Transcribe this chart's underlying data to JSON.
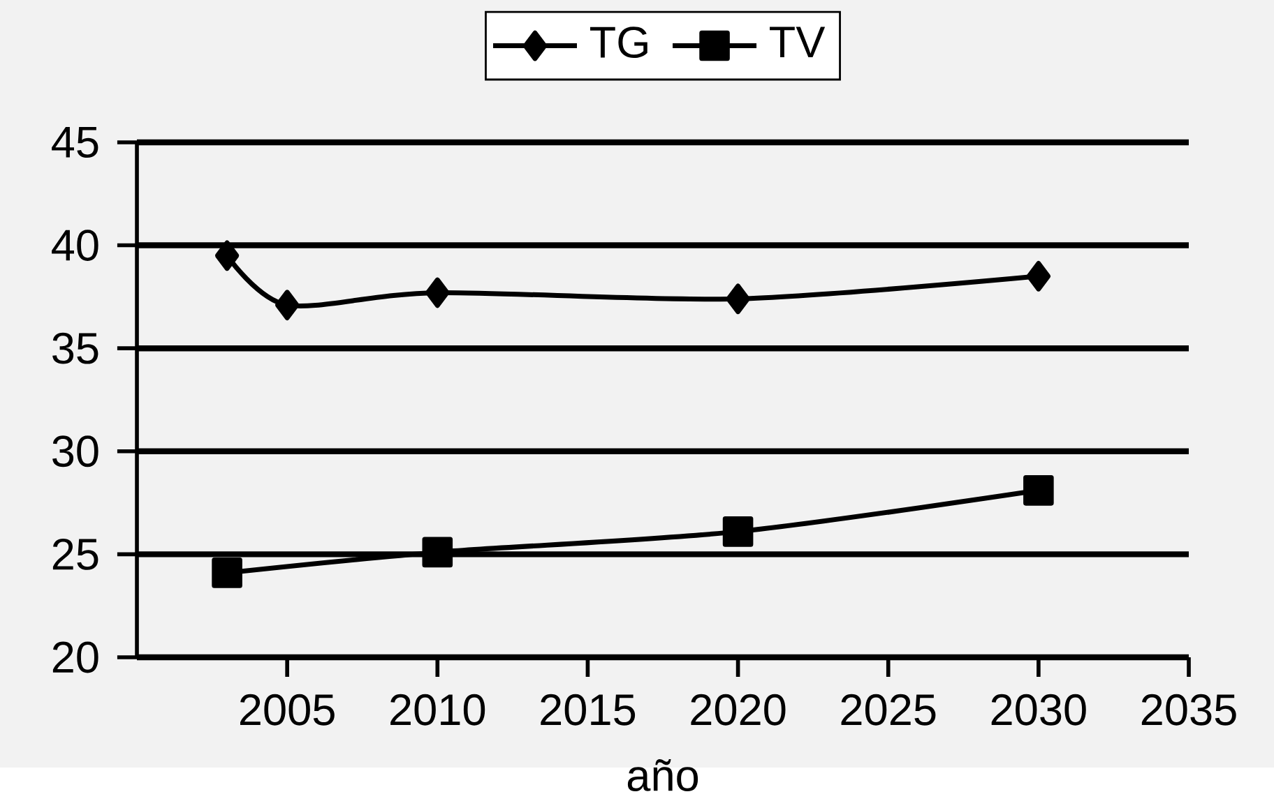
{
  "chart_data": {
    "type": "line",
    "xlabel": "año",
    "series": [
      {
        "name": "TG",
        "color": "#000000",
        "marker": "diamond",
        "x": [
          2003,
          2005,
          2010,
          2020,
          2030
        ],
        "values": [
          39.5,
          37.1,
          37.7,
          37.4,
          38.5
        ]
      },
      {
        "name": "TV",
        "color": "#000000",
        "marker": "square",
        "x": [
          2003,
          2010,
          2020,
          2030
        ],
        "values": [
          24.1,
          25.1,
          26.1,
          28.1
        ]
      }
    ],
    "xlim": [
      2000,
      2035
    ],
    "xticks": [
      2005,
      2010,
      2015,
      2020,
      2025,
      2030,
      2035
    ],
    "ylim": [
      20,
      45
    ],
    "yticks": [
      20,
      25,
      30,
      35,
      40,
      45
    ],
    "grid": "y",
    "legend": "top",
    "line_style": "solid"
  }
}
